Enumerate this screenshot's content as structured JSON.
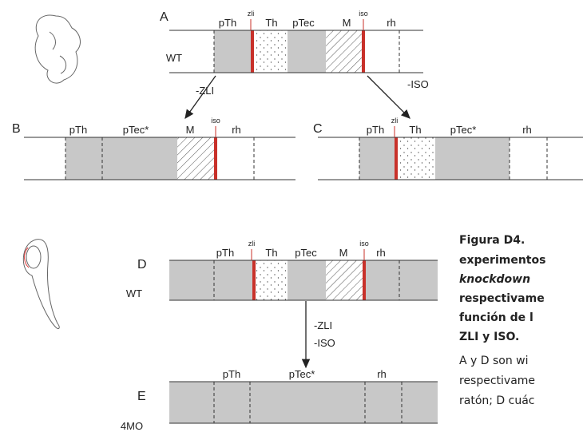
{
  "panels": [
    {
      "label": "A",
      "genotype": "WT",
      "regions": [
        "pTh",
        "Th",
        "pTec",
        "M",
        "rh"
      ],
      "organizers": [
        "zli",
        "iso"
      ]
    },
    {
      "label": "B",
      "regions": [
        "pTh",
        "pTec*",
        "M",
        "rh"
      ],
      "organizers": [
        "iso"
      ]
    },
    {
      "label": "C",
      "regions": [
        "pTh",
        "Th",
        "pTec*",
        "rh"
      ],
      "organizers": [
        "zli"
      ]
    },
    {
      "label": "D",
      "genotype": "WT",
      "regions": [
        "pTh",
        "Th",
        "pTec",
        "M",
        "rh"
      ],
      "organizers": [
        "zli",
        "iso"
      ]
    },
    {
      "label": "E",
      "genotype": "4MO",
      "regions": [
        "pTh",
        "pTec*",
        "rh"
      ]
    }
  ],
  "arrows": [
    [
      "-ZLI"
    ],
    [
      "-ISO"
    ],
    [
      "-ZLI",
      "-ISO"
    ]
  ],
  "caption": {
    "title": "Figura D4.",
    "bold_lines": [
      "experimentos",
      "knockdown",
      "respectivame",
      "función de l",
      "ZLI y ISO."
    ],
    "lines": [
      "A y D son wi",
      "respectivame",
      "ratón; D cuác"
    ]
  }
}
